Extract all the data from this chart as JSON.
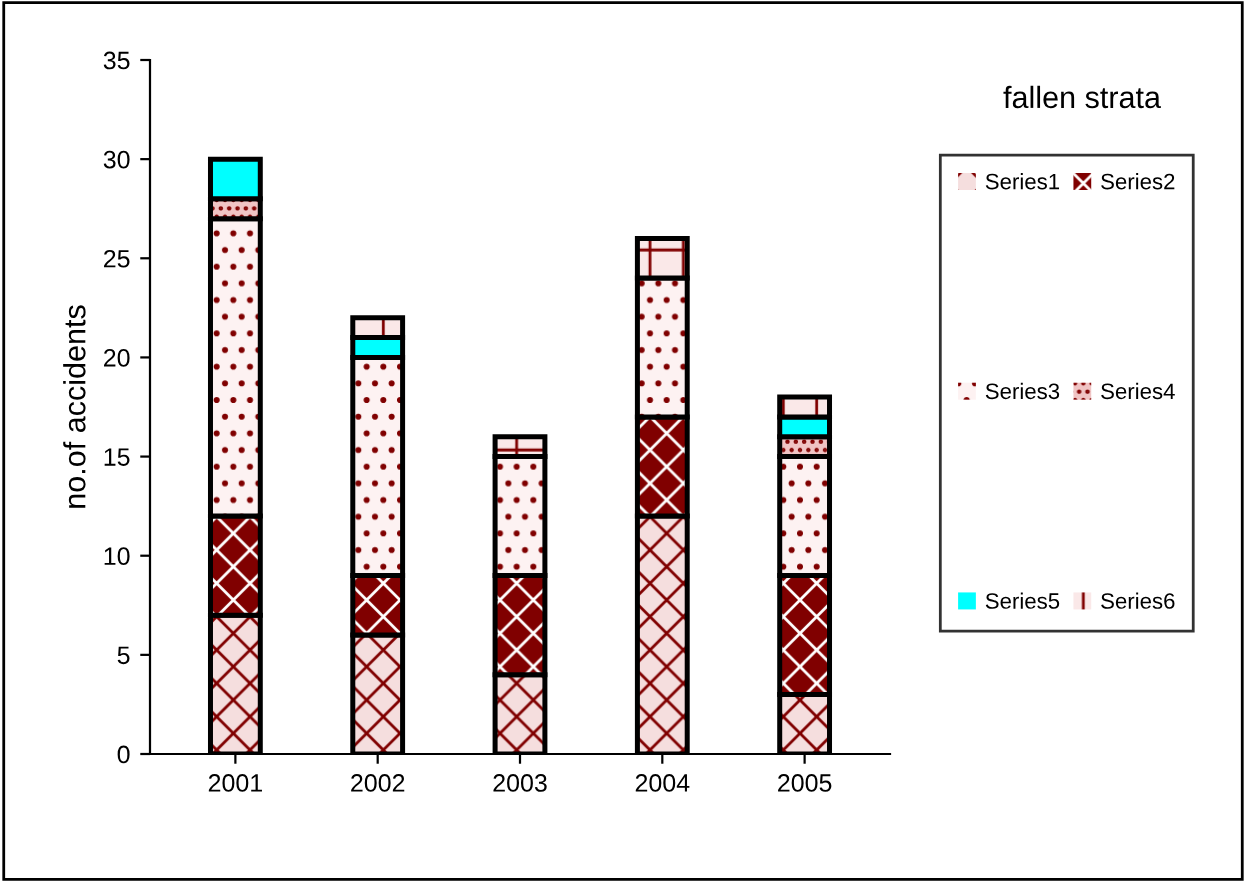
{
  "chart_data": {
    "type": "bar",
    "stacked": true,
    "legend_title": "fallen strata",
    "ylabel": "no.of accidents",
    "categories": [
      "2001",
      "2002",
      "2003",
      "2004",
      "2005"
    ],
    "series": [
      {
        "name": "Series1",
        "color": "#f5dede",
        "values": [
          7,
          6,
          4,
          12,
          3
        ]
      },
      {
        "name": "Series2",
        "color": "#800000",
        "values": [
          5,
          3,
          5,
          5,
          6
        ]
      },
      {
        "name": "Series3",
        "color": "#fdf2f2",
        "values": [
          15,
          11,
          6,
          7,
          6
        ]
      },
      {
        "name": "Series4",
        "color": "#f0c4c4",
        "values": [
          1,
          0,
          0,
          0,
          1
        ]
      },
      {
        "name": "Series5",
        "color": "#00ffff",
        "values": [
          2,
          1,
          0,
          0,
          1
        ]
      },
      {
        "name": "Series6",
        "color": "#fae8e8",
        "values": [
          0,
          1,
          1,
          2,
          1
        ]
      }
    ],
    "ylim": [
      0,
      35
    ],
    "yticks": [
      0,
      5,
      10,
      15,
      20,
      25,
      30,
      35
    ],
    "grid": false,
    "legend": "right"
  }
}
